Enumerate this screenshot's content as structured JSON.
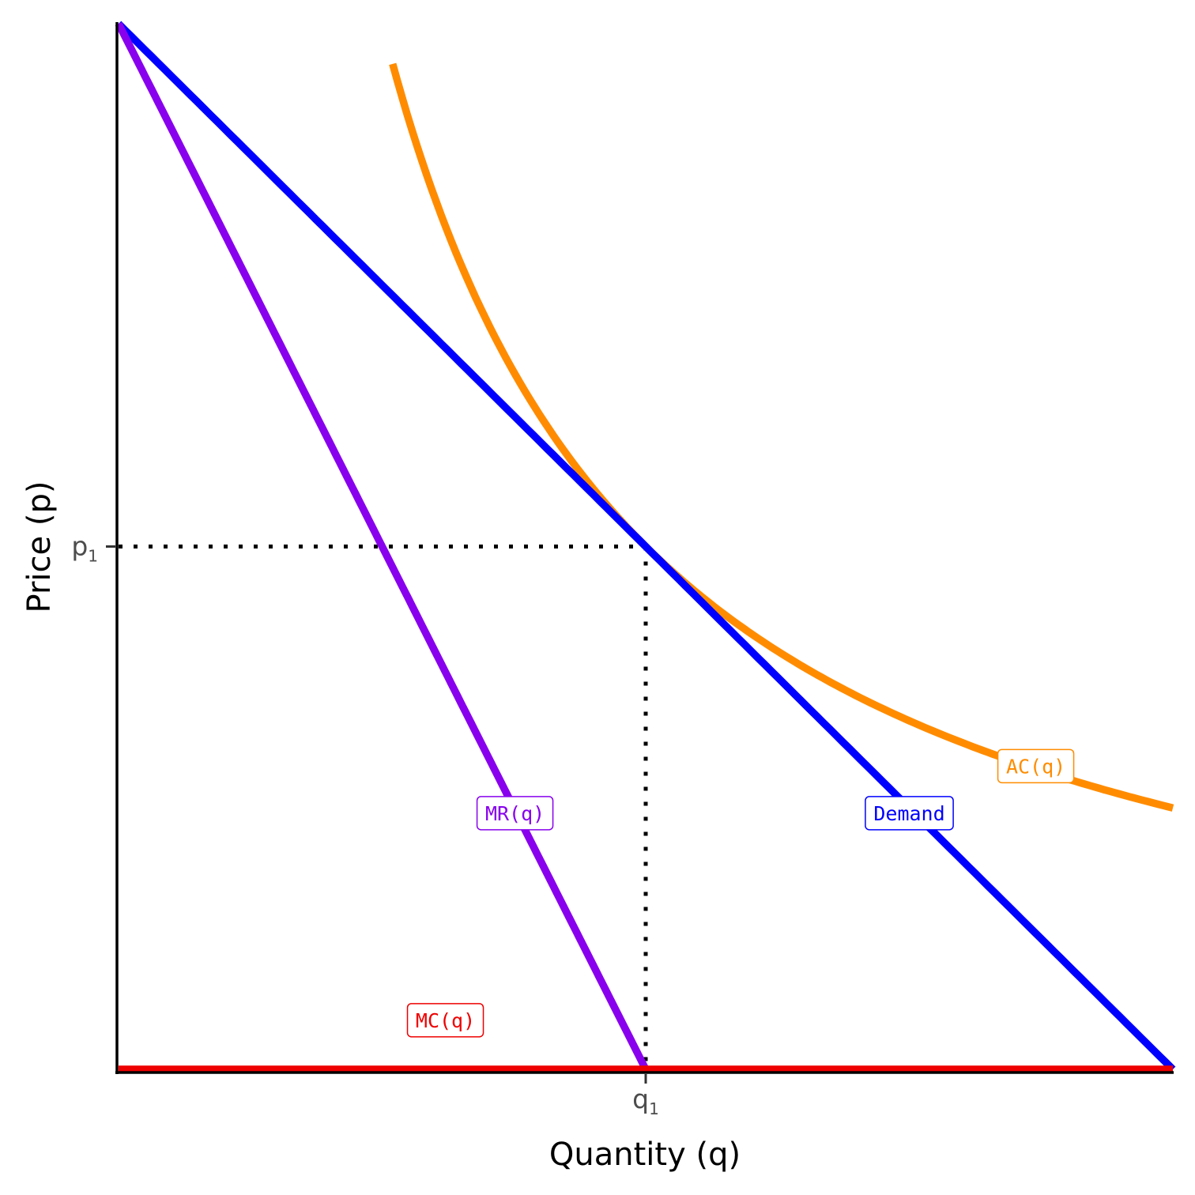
{
  "chart_data": {
    "type": "line",
    "title": "",
    "xlabel": "Quantity (q)",
    "ylabel": "Price (p)",
    "xlim": [
      0,
      10
    ],
    "ylim": [
      0,
      10
    ],
    "grid": false,
    "legend": "none",
    "x_ticks": [
      {
        "value": 5,
        "label": "q",
        "subscript": "1"
      }
    ],
    "y_ticks": [
      {
        "value": 5,
        "label": "p",
        "subscript": "1"
      }
    ],
    "guides": [
      {
        "from": [
          0,
          5
        ],
        "to": [
          5,
          5
        ]
      },
      {
        "from": [
          5,
          5
        ],
        "to": [
          5,
          0
        ]
      }
    ],
    "series": [
      {
        "key": "ac",
        "name": "AC(q)",
        "color": "#ff8c00",
        "kind": "ac",
        "fixed_cost": 25,
        "x_from": 2.6,
        "x_to": 10,
        "label_at": [
          8.7,
          2.9
        ]
      },
      {
        "key": "demand",
        "name": "Demand",
        "color": "#0000ff",
        "kind": "linear",
        "intercept": 10,
        "slope": -1,
        "x_from": 0,
        "x_to": 10,
        "label_at": [
          7.5,
          2.45
        ]
      },
      {
        "key": "mr",
        "name": "MR(q)",
        "color": "#8800ee",
        "kind": "linear",
        "intercept": 10,
        "slope": -2,
        "x_from": 0,
        "x_to": 5,
        "label_at": [
          3.76,
          2.45
        ]
      },
      {
        "key": "mc",
        "name": "MC(q)",
        "color": "#ee0000",
        "kind": "linear",
        "intercept": 0,
        "slope": 0,
        "x_from": 0,
        "x_to": 10,
        "label_at": [
          3.1,
          0.47
        ]
      }
    ]
  }
}
